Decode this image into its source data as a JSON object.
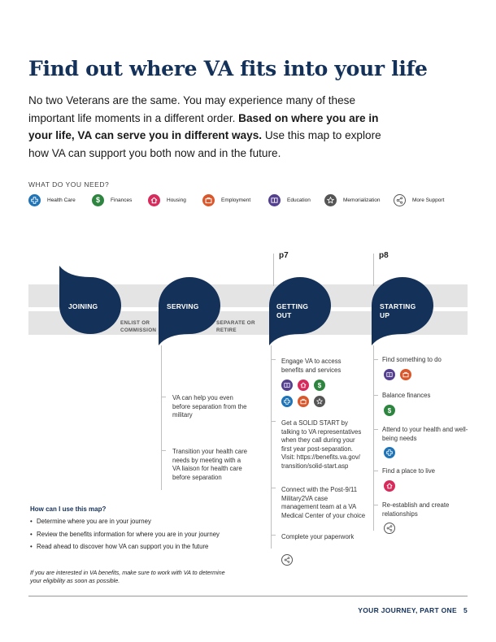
{
  "title": "Find out where VA fits into your life",
  "intro": {
    "part1": "No two Veterans are the same. You may experience many of these important life moments in a different order.",
    "bold": "Based on where you are in your life, VA can serve you in different ways.",
    "part2": "Use this map to explore how VA can support you both now and in the future."
  },
  "needs_label": "WHAT DO YOU NEED?",
  "legend": [
    {
      "label": "Health Care",
      "icon": "health-care-icon",
      "color": "#1f73b7"
    },
    {
      "label": "Finances",
      "icon": "finances-icon",
      "color": "#2e8540"
    },
    {
      "label": "Housing",
      "icon": "housing-icon",
      "color": "#d62b5b"
    },
    {
      "label": "Employment",
      "icon": "employment-icon",
      "color": "#d9572b"
    },
    {
      "label": "Education",
      "icon": "education-icon",
      "color": "#54408f"
    },
    {
      "label": "Memorialization",
      "icon": "memorialization-icon",
      "color": "#555555"
    },
    {
      "label": "More Support",
      "icon": "more-support-icon",
      "color": "#ffffff"
    }
  ],
  "stages": {
    "joining": "JOINING",
    "serving": "SERVING",
    "getting_out_1": "GETTING",
    "getting_out_2": "OUT",
    "starting_up_1": "STARTING",
    "starting_up_2": "UP"
  },
  "transitions": {
    "enlist_1": "ENLIST OR",
    "enlist_2": "COMMISSION",
    "separate_1": "SEPARATE OR",
    "separate_2": "RETIRE"
  },
  "page_refs": {
    "getting_out": "p7",
    "starting_up": "p8"
  },
  "serving_items": [
    "VA can help you even before separation from the military",
    "Transition your health care needs by meeting with a VA liaison for health care before separation"
  ],
  "getting_out_items": [
    "Engage VA to access benefits and services",
    "Get a SOLID START by talking to VA representatives when they call during your first year post-separation. Visit: https://benefits.va.gov/ transition/solid-start.asp",
    "Connect with the Post-9/11 Military2VA case management team at a VA Medical Center of your choice",
    "Complete your paperwork"
  ],
  "starting_up_items": [
    "Find something to do",
    "Balance finances",
    "Attend to your health and well-being needs",
    "Find a place to live",
    "Re-establish and create relationships"
  ],
  "howto": {
    "heading": "How can I use this map?",
    "items": [
      "Determine where you are in your journey",
      "Review the benefits information for where you are in your journey",
      "Read ahead to discover how VA can support you in the future"
    ]
  },
  "note": "If you are interested in VA benefits, make sure to work with VA to determine  your eligibility as soon as possible.",
  "footer": {
    "section": "YOUR JOURNEY, PART ONE",
    "page": "5"
  },
  "colors": {
    "navy": "#14315a",
    "band": "#e4e4e4"
  }
}
